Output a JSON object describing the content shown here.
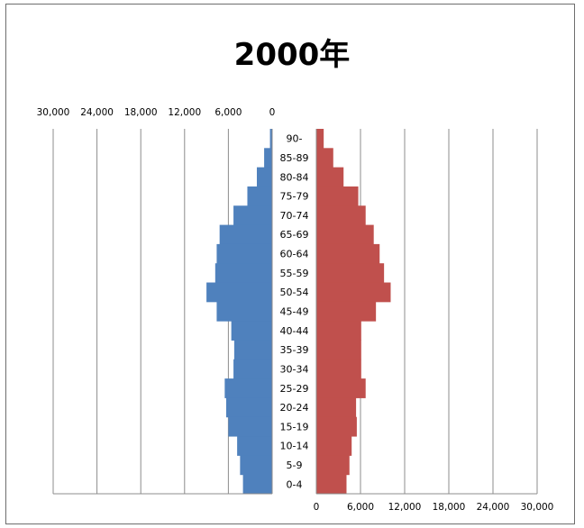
{
  "chart_data": {
    "type": "bar",
    "title": "2000年",
    "categories": [
      "90-",
      "85-89",
      "80-84",
      "75-79",
      "70-74",
      "65-69",
      "60-64",
      "55-59",
      "50-54",
      "45-49",
      "40-44",
      "35-39",
      "30-34",
      "25-29",
      "20-24",
      "15-19",
      "10-14",
      "5-9",
      "0-4"
    ],
    "series": [
      {
        "values": [
          300,
          1100,
          2100,
          3400,
          5300,
          7200,
          7600,
          7800,
          9000,
          7600,
          5600,
          5200,
          5300,
          6500,
          6300,
          6000,
          4800,
          4400,
          4000
        ],
        "color": "#4f81bd"
      },
      {
        "values": [
          1000,
          2300,
          3700,
          5700,
          6700,
          7800,
          8600,
          9200,
          10100,
          8100,
          6100,
          6100,
          6100,
          6700,
          5400,
          5500,
          4800,
          4500,
          4100
        ],
        "color": "#c0504d"
      }
    ],
    "left_axis": {
      "ticks": [
        "30,000",
        "24,000",
        "18,000",
        "12,000",
        "6,000",
        "0"
      ],
      "range": [
        0,
        30000
      ],
      "position": "top"
    },
    "right_axis": {
      "ticks": [
        "0",
        "6,000",
        "12,000",
        "18,000",
        "24,000",
        "30,000"
      ],
      "range": [
        0,
        30000
      ],
      "position": "bottom"
    },
    "grid": true
  }
}
